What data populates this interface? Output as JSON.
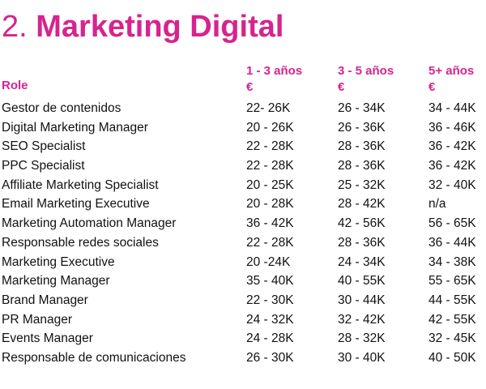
{
  "title": {
    "number": "2.",
    "text": "Marketing Digital"
  },
  "colors": {
    "accent": "#d6248f",
    "text": "#111111",
    "background": "#ffffff"
  },
  "table": {
    "headers": {
      "role": "Role",
      "col1": [
        "1 - 3 años",
        "€"
      ],
      "col2": [
        "3 - 5 años",
        "€"
      ],
      "col3": [
        "5+ años",
        "€"
      ]
    },
    "rows": [
      [
        "Gestor de contenidos",
        "22- 26K",
        "26 - 34K",
        "34 - 44K"
      ],
      [
        "Digital Marketing Manager",
        "20 - 26K",
        "26 - 36K",
        "36 - 46K"
      ],
      [
        "SEO Specialist",
        "22 - 28K",
        "28 - 36K",
        "36 - 42K"
      ],
      [
        "PPC Specialist",
        "22 - 28K",
        "28 - 36K",
        "36 - 42K"
      ],
      [
        "Affiliate Marketing Specialist",
        "20 - 25K",
        "25 - 32K",
        "32 - 40K"
      ],
      [
        "Email Marketing Executive",
        "20 - 28K",
        "28 - 42K",
        "n/a"
      ],
      [
        "Marketing Automation Manager",
        "36 - 42K",
        "42 - 56K",
        "56 - 65K"
      ],
      [
        "Responsable redes sociales",
        "22 - 28K",
        "28 - 36K",
        "36 - 44K"
      ],
      [
        "Marketing Executive",
        "20 -24K",
        "24 - 34K",
        "34 - 38K"
      ],
      [
        "Marketing Manager",
        "35 - 40K",
        "40 - 55K",
        "55 - 65K"
      ],
      [
        "Brand Manager",
        "22 - 30K",
        "30 - 44K",
        "44 - 55K"
      ],
      [
        "PR Manager",
        "24 - 32K",
        "32 - 42K",
        "42 - 55K"
      ],
      [
        "Events Manager",
        "24 - 28K",
        "28 - 32K",
        "32 - 45K"
      ],
      [
        "Responsable de comunicaciones",
        "26 - 30K",
        "30 - 40K",
        "40 - 50K"
      ]
    ]
  }
}
